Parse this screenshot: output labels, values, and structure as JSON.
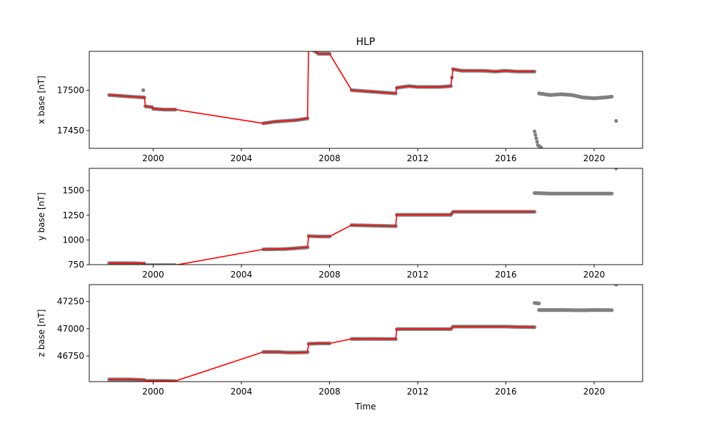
{
  "chart_data": {
    "type": "line",
    "title": "HLP",
    "xlabel": "Time",
    "xticks": [
      2000,
      2004,
      2008,
      2012,
      2016,
      2020
    ],
    "xlim": [
      1997.1,
      2022.2
    ],
    "colors": {
      "points": "#808080",
      "line": "#ff0000"
    },
    "panels": [
      {
        "id": "x",
        "ylabel": "x base [nT]",
        "ylim": [
          17428,
          17548
        ],
        "yticks": [
          17450,
          17500
        ],
        "segments": [
          [
            [
              1998.0,
              17494
            ],
            [
              1998.5,
              17493
            ],
            [
              1999.0,
              17492
            ],
            [
              1999.6,
              17491
            ],
            [
              1999.65,
              17480
            ]
          ],
          [
            [
              1999.65,
              17480
            ],
            [
              1999.95,
              17479
            ],
            [
              2000.0,
              17477
            ],
            [
              2000.5,
              17476
            ],
            [
              2001.0,
              17476
            ]
          ],
          [
            [
              2001.0,
              17476
            ],
            [
              2005.0,
              17459
            ]
          ],
          [
            [
              2005.0,
              17459
            ],
            [
              2005.5,
              17461
            ],
            [
              2006.0,
              17462
            ],
            [
              2006.5,
              17463
            ],
            [
              2007.0,
              17465
            ]
          ],
          [
            [
              2007.0,
              17465
            ],
            [
              2007.05,
              17553
            ],
            [
              2007.4,
              17547
            ],
            [
              2007.5,
              17545
            ],
            [
              2008.0,
              17545
            ]
          ],
          [
            [
              2008.0,
              17545
            ],
            [
              2009.0,
              17500
            ]
          ],
          [
            [
              2009.0,
              17500
            ],
            [
              2009.5,
              17499
            ],
            [
              2010.0,
              17498
            ],
            [
              2010.5,
              17497
            ],
            [
              2011.0,
              17496
            ]
          ],
          [
            [
              2011.0,
              17496
            ],
            [
              2011.05,
              17503
            ],
            [
              2011.6,
              17505
            ],
            [
              2012.0,
              17504
            ],
            [
              2012.5,
              17504
            ],
            [
              2013.0,
              17504
            ],
            [
              2013.5,
              17505
            ]
          ],
          [
            [
              2013.5,
              17505
            ],
            [
              2013.6,
              17526
            ],
            [
              2014.0,
              17524
            ],
            [
              2014.5,
              17524
            ],
            [
              2015.0,
              17524
            ],
            [
              2015.5,
              17523
            ],
            [
              2016.0,
              17524
            ],
            [
              2016.5,
              17523
            ],
            [
              2017.0,
              17523
            ],
            [
              2017.3,
              17523
            ]
          ]
        ],
        "scatter_only": [
          [
            [
              1999.55,
              17500
            ]
          ],
          [
            [
              2017.3,
              17449
            ],
            [
              2017.45,
              17432
            ],
            [
              2017.6,
              17429
            ]
          ],
          [
            [
              2017.5,
              17496
            ],
            [
              2018.0,
              17494
            ],
            [
              2018.5,
              17495
            ],
            [
              2019.0,
              17494
            ],
            [
              2019.5,
              17491
            ],
            [
              2020.0,
              17490
            ],
            [
              2020.5,
              17491
            ],
            [
              2020.8,
              17492
            ]
          ],
          [
            [
              2021.0,
              17462
            ]
          ]
        ]
      },
      {
        "id": "y",
        "ylabel": "y base [nT]",
        "ylim": [
          750,
          1725
        ],
        "yticks": [
          750,
          1000,
          1250,
          1500
        ],
        "segments": [
          [
            [
              1998.0,
              765
            ],
            [
              1999.0,
              765
            ],
            [
              1999.6,
              762
            ],
            [
              1999.65,
              745
            ]
          ],
          [
            [
              1999.65,
              745
            ],
            [
              2000.0,
              745
            ],
            [
              2000.5,
              745
            ],
            [
              2001.0,
              745
            ]
          ],
          [
            [
              2001.0,
              745
            ],
            [
              2005.0,
              905
            ]
          ],
          [
            [
              2005.0,
              905
            ],
            [
              2006.0,
              908
            ],
            [
              2007.0,
              925
            ]
          ],
          [
            [
              2007.0,
              925
            ],
            [
              2007.05,
              1040
            ],
            [
              2007.5,
              1035
            ],
            [
              2008.0,
              1035
            ]
          ],
          [
            [
              2008.0,
              1035
            ],
            [
              2009.0,
              1150
            ]
          ],
          [
            [
              2009.0,
              1150
            ],
            [
              2010.0,
              1145
            ],
            [
              2011.0,
              1140
            ]
          ],
          [
            [
              2011.0,
              1140
            ],
            [
              2011.05,
              1255
            ],
            [
              2012.0,
              1255
            ],
            [
              2013.0,
              1255
            ],
            [
              2013.5,
              1255
            ]
          ],
          [
            [
              2013.5,
              1255
            ],
            [
              2013.6,
              1285
            ],
            [
              2015.0,
              1285
            ],
            [
              2016.0,
              1285
            ],
            [
              2017.3,
              1285
            ]
          ]
        ],
        "scatter_only": [
          [
            [
              2017.3,
              1475
            ],
            [
              2018.0,
              1470
            ],
            [
              2019.0,
              1470
            ],
            [
              2020.0,
              1470
            ],
            [
              2020.8,
              1470
            ]
          ],
          [
            [
              2021.0,
              1725
            ]
          ]
        ]
      },
      {
        "id": "z",
        "ylabel": "z base [nT]",
        "ylim": [
          46515,
          47405
        ],
        "yticks": [
          46750,
          47000,
          47250
        ],
        "segments": [
          [
            [
              1998.0,
              46535
            ],
            [
              1999.0,
              46535
            ],
            [
              1999.6,
              46530
            ],
            [
              1999.65,
              46522
            ]
          ],
          [
            [
              1999.65,
              46522
            ],
            [
              2000.0,
              46522
            ],
            [
              2000.5,
              46522
            ],
            [
              2001.0,
              46520
            ]
          ],
          [
            [
              2001.0,
              46520
            ],
            [
              2005.0,
              46787
            ]
          ],
          [
            [
              2005.0,
              46787
            ],
            [
              2005.7,
              46787
            ],
            [
              2006.0,
              46783
            ],
            [
              2006.5,
              46782
            ],
            [
              2007.0,
              46785
            ]
          ],
          [
            [
              2007.0,
              46785
            ],
            [
              2007.05,
              46862
            ],
            [
              2007.5,
              46866
            ],
            [
              2008.0,
              46866
            ]
          ],
          [
            [
              2008.0,
              46866
            ],
            [
              2009.0,
              46907
            ]
          ],
          [
            [
              2009.0,
              46907
            ],
            [
              2010.0,
              46907
            ],
            [
              2011.0,
              46906
            ]
          ],
          [
            [
              2011.0,
              46906
            ],
            [
              2011.05,
              46997
            ],
            [
              2012.0,
              46997
            ],
            [
              2013.0,
              46997
            ],
            [
              2013.5,
              46997
            ]
          ],
          [
            [
              2013.5,
              46997
            ],
            [
              2013.6,
              47020
            ],
            [
              2015.0,
              47020
            ],
            [
              2016.0,
              47020
            ],
            [
              2016.5,
              47017
            ],
            [
              2017.3,
              47015
            ]
          ]
        ],
        "scatter_only": [
          [
            [
              2017.3,
              47237
            ],
            [
              2017.5,
              47232
            ]
          ],
          [
            [
              2017.5,
              47172
            ],
            [
              2018.5,
              47172
            ],
            [
              2019.5,
              47170
            ],
            [
              2020.0,
              47172
            ],
            [
              2020.8,
              47171
            ]
          ],
          [
            [
              2021.0,
              47405
            ]
          ]
        ]
      }
    ]
  }
}
